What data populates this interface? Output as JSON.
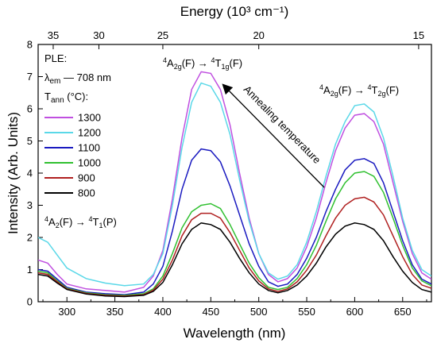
{
  "chart_data": {
    "type": "line",
    "xlabel": "Wavelength (nm)",
    "ylabel": "Intensity (Arb. Units)",
    "top_axis_label": "Energy (10³ cm⁻¹)",
    "xlim": [
      270,
      680
    ],
    "ylim": [
      0,
      8
    ],
    "x_ticks": [
      300,
      350,
      400,
      450,
      500,
      550,
      600,
      650
    ],
    "y_ticks": [
      0,
      1,
      2,
      3,
      4,
      5,
      6,
      7,
      8
    ],
    "top_ticks": [
      35,
      30,
      25,
      20,
      15
    ],
    "legend": {
      "placement": "top-left",
      "header_line1": "PLE:",
      "lambda_symbol": "λ",
      "lambda_sub": "em",
      "lambda_value": " — 708 nm",
      "tann_symbol": "T",
      "tann_sub": "ann",
      "tann_unit": " (°C):"
    },
    "annotations": {
      "peak1_pre": "4",
      "peak1_a": "A",
      "peak1_a_sub": "2g",
      "peak1_mid": "(F) → ",
      "peak1_t_sup": "4",
      "peak1_t": "T",
      "peak1_t_sub": "1g",
      "peak1_end": "(F)",
      "peak2_pre": "4",
      "peak2_a": "A",
      "peak2_a_sub": "2g",
      "peak2_mid": "(F) → ",
      "peak2_t_sup": "4",
      "peak2_t": "T",
      "peak2_t_sub": "2g",
      "peak2_end": "(F)",
      "peak3_pre": "4",
      "peak3_a": "A",
      "peak3_a_sub": "2",
      "peak3_mid": "(F) → ",
      "peak3_t_sup": "4",
      "peak3_t": "T",
      "peak3_t_sub": "1",
      "peak3_end": "(P)",
      "arrow_label": "Annealing temperature"
    },
    "x": [
      270,
      280,
      290,
      300,
      320,
      340,
      360,
      380,
      390,
      400,
      410,
      420,
      430,
      440,
      450,
      460,
      470,
      480,
      490,
      500,
      510,
      520,
      530,
      540,
      550,
      560,
      570,
      580,
      590,
      600,
      610,
      620,
      630,
      640,
      650,
      660,
      670,
      680
    ],
    "series": [
      {
        "name": "1300",
        "color": "#c050e0",
        "values": [
          1.3,
          1.2,
          0.85,
          0.55,
          0.4,
          0.35,
          0.3,
          0.45,
          0.8,
          1.6,
          3.2,
          5.1,
          6.6,
          7.15,
          7.1,
          6.6,
          5.5,
          4.0,
          2.6,
          1.5,
          0.85,
          0.62,
          0.72,
          1.05,
          1.7,
          2.6,
          3.7,
          4.7,
          5.4,
          5.8,
          5.85,
          5.6,
          4.9,
          3.7,
          2.5,
          1.5,
          0.9,
          0.7
        ]
      },
      {
        "name": "1200",
        "color": "#5ad8e8",
        "values": [
          2.0,
          1.85,
          1.45,
          1.05,
          0.72,
          0.58,
          0.5,
          0.55,
          0.85,
          1.5,
          3.0,
          4.8,
          6.2,
          6.8,
          6.7,
          6.2,
          5.2,
          3.8,
          2.5,
          1.5,
          0.9,
          0.7,
          0.8,
          1.15,
          1.85,
          2.8,
          3.9,
          4.9,
          5.6,
          6.1,
          6.15,
          5.9,
          5.1,
          3.9,
          2.6,
          1.6,
          1.0,
          0.8
        ]
      },
      {
        "name": "1100",
        "color": "#1a1ac0",
        "values": [
          1.0,
          0.95,
          0.7,
          0.45,
          0.3,
          0.25,
          0.22,
          0.3,
          0.55,
          1.1,
          2.2,
          3.5,
          4.4,
          4.75,
          4.7,
          4.35,
          3.6,
          2.7,
          1.8,
          1.1,
          0.62,
          0.48,
          0.55,
          0.85,
          1.35,
          2.0,
          2.8,
          3.5,
          4.1,
          4.4,
          4.45,
          4.3,
          3.7,
          2.8,
          1.9,
          1.15,
          0.7,
          0.55
        ]
      },
      {
        "name": "1000",
        "color": "#30c030",
        "values": [
          0.95,
          0.9,
          0.65,
          0.42,
          0.28,
          0.22,
          0.2,
          0.25,
          0.4,
          0.8,
          1.5,
          2.3,
          2.8,
          3.0,
          3.05,
          2.9,
          2.4,
          1.8,
          1.2,
          0.75,
          0.45,
          0.38,
          0.45,
          0.72,
          1.15,
          1.75,
          2.5,
          3.2,
          3.7,
          4.0,
          4.05,
          3.9,
          3.4,
          2.6,
          1.75,
          1.05,
          0.65,
          0.5
        ]
      },
      {
        "name": "900",
        "color": "#b02020",
        "values": [
          0.9,
          0.85,
          0.62,
          0.4,
          0.26,
          0.2,
          0.18,
          0.22,
          0.36,
          0.7,
          1.3,
          2.05,
          2.55,
          2.75,
          2.75,
          2.6,
          2.15,
          1.6,
          1.05,
          0.65,
          0.4,
          0.32,
          0.4,
          0.62,
          0.98,
          1.45,
          2.05,
          2.6,
          3.0,
          3.2,
          3.25,
          3.1,
          2.7,
          2.05,
          1.4,
          0.85,
          0.52,
          0.42
        ]
      },
      {
        "name": "800",
        "color": "#000000",
        "values": [
          0.85,
          0.8,
          0.58,
          0.38,
          0.24,
          0.18,
          0.16,
          0.2,
          0.32,
          0.6,
          1.15,
          1.8,
          2.25,
          2.45,
          2.4,
          2.25,
          1.85,
          1.35,
          0.9,
          0.55,
          0.35,
          0.28,
          0.35,
          0.52,
          0.8,
          1.2,
          1.7,
          2.1,
          2.35,
          2.45,
          2.4,
          2.25,
          1.9,
          1.4,
          0.95,
          0.6,
          0.38,
          0.3
        ]
      }
    ]
  }
}
